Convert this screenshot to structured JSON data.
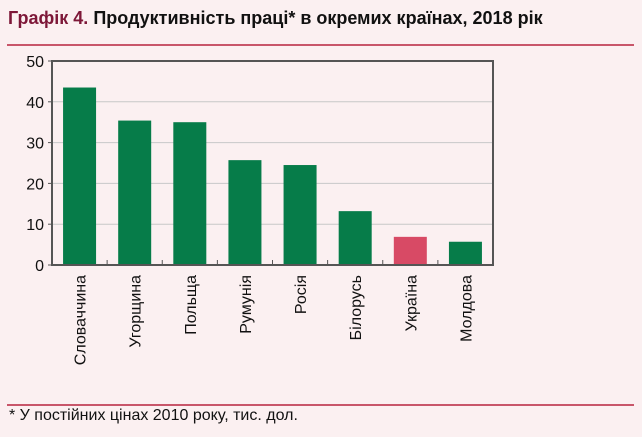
{
  "title_label": "Графік 4.",
  "title_text": "Продуктивність праці* в окремих країнах, 2018 рік",
  "footnote": "* У постійних цінах 2010 року, тис. дол.",
  "chart_data": {
    "type": "bar",
    "title": "Графік 4. Продуктивність праці* в окремих країнах, 2018 рік",
    "categories": [
      "Словаччина",
      "Угорщина",
      "Польща",
      "Румунія",
      "Росія",
      "Білорусь",
      "Україна",
      "Молдова"
    ],
    "values": [
      43.5,
      35.4,
      35.0,
      25.7,
      24.5,
      13.2,
      6.9,
      5.7
    ],
    "colors": [
      "#067c49",
      "#067c49",
      "#067c49",
      "#067c49",
      "#067c49",
      "#067c49",
      "#d84a65",
      "#067c49"
    ],
    "ylim": [
      0,
      50
    ],
    "yticks": [
      "0",
      "10",
      "20",
      "30",
      "40",
      "50"
    ],
    "grid": true,
    "xlabel": "",
    "ylabel": ""
  }
}
